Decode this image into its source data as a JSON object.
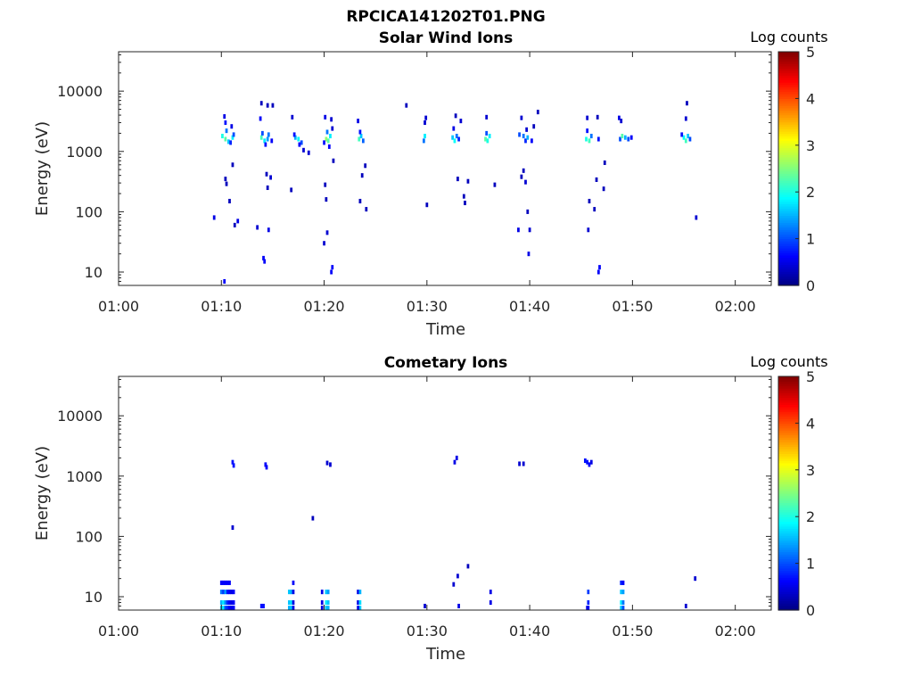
{
  "figure": {
    "title": "RPCICA141202T01.PNG"
  },
  "colorbar": {
    "label": "Log counts",
    "ticks": [
      "0",
      "1",
      "2",
      "3",
      "4",
      "5"
    ],
    "range": [
      0,
      5
    ]
  },
  "chart_data": [
    {
      "type": "heatmap",
      "title": "Solar Wind Ions",
      "xlabel": "Time",
      "ylabel": "Energy (eV)",
      "x_ticks": [
        "01:00",
        "01:10",
        "01:20",
        "01:30",
        "01:40",
        "01:50",
        "02:00"
      ],
      "x_range_minutes": [
        0,
        63.5
      ],
      "y_scale": "log",
      "y_range_eV": [
        6,
        45000
      ],
      "y_ticks": [
        "10",
        "100",
        "1000",
        "10000"
      ],
      "y_tick_values": [
        10,
        100,
        1000,
        10000
      ],
      "cells": [
        [
          10.1,
          1800,
          2
        ],
        [
          10.4,
          1600,
          2.3
        ],
        [
          10.7,
          1450,
          1.6
        ],
        [
          10.5,
          2200,
          1.2
        ],
        [
          10.4,
          3000,
          0.7
        ],
        [
          10.3,
          3800,
          0.5
        ],
        [
          10.9,
          1400,
          0.8
        ],
        [
          11.1,
          1700,
          1.8
        ],
        [
          11.2,
          1900,
          1.0
        ],
        [
          11.0,
          2600,
          0.5
        ],
        [
          13.9,
          1700,
          2.2
        ],
        [
          14.2,
          1500,
          1.8
        ],
        [
          14.5,
          1600,
          1.4
        ],
        [
          14.0,
          2000,
          1.0
        ],
        [
          13.8,
          3500,
          0.6
        ],
        [
          14.3,
          1300,
          0.7
        ],
        [
          14.6,
          1900,
          1.2
        ],
        [
          14.9,
          1500,
          0.6
        ],
        [
          13.9,
          6300,
          0.3
        ],
        [
          14.5,
          5800,
          0.3
        ],
        [
          15.0,
          5800,
          0.3
        ],
        [
          17.2,
          1700,
          1.5
        ],
        [
          17.5,
          1600,
          1.9
        ],
        [
          17.8,
          1400,
          1.0
        ],
        [
          17.1,
          1900,
          0.7
        ],
        [
          17.6,
          1300,
          0.6
        ],
        [
          16.9,
          3700,
          0.4
        ],
        [
          20.2,
          1600,
          2.6
        ],
        [
          20.4,
          1500,
          2.3
        ],
        [
          20.6,
          1800,
          1.8
        ],
        [
          20.3,
          2100,
          1.2
        ],
        [
          20.0,
          1400,
          0.7
        ],
        [
          20.1,
          3700,
          0.5
        ],
        [
          20.7,
          3400,
          0.4
        ],
        [
          20.5,
          1200,
          0.6
        ],
        [
          20.8,
          2400,
          0.4
        ],
        [
          23.4,
          1600,
          2.2
        ],
        [
          23.6,
          1800,
          1.6
        ],
        [
          23.8,
          1500,
          1.1
        ],
        [
          23.3,
          3200,
          0.5
        ],
        [
          23.5,
          2100,
          0.7
        ],
        [
          29.8,
          1800,
          1.8
        ],
        [
          29.7,
          1500,
          1.2
        ],
        [
          29.9,
          3600,
          0.4
        ],
        [
          29.8,
          3000,
          0.4
        ],
        [
          32.5,
          1700,
          1.6
        ],
        [
          32.7,
          1500,
          1.9
        ],
        [
          32.9,
          1800,
          1.2
        ],
        [
          33.1,
          1600,
          0.8
        ],
        [
          32.6,
          2400,
          0.5
        ],
        [
          32.8,
          3900,
          0.3
        ],
        [
          33.3,
          3200,
          0.4
        ],
        [
          35.7,
          1600,
          2.3
        ],
        [
          35.9,
          1500,
          2.0
        ],
        [
          36.1,
          1800,
          1.8
        ],
        [
          35.8,
          2000,
          1.0
        ],
        [
          35.8,
          3700,
          0.4
        ],
        [
          39.0,
          1900,
          1.0
        ],
        [
          39.4,
          1800,
          1.2
        ],
        [
          39.6,
          1500,
          0.8
        ],
        [
          39.8,
          1700,
          1.5
        ],
        [
          40.2,
          1500,
          0.6
        ],
        [
          39.2,
          3600,
          0.4
        ],
        [
          40.4,
          2600,
          0.3
        ],
        [
          39.7,
          2300,
          0.4
        ],
        [
          45.5,
          1600,
          2.0
        ],
        [
          45.8,
          1500,
          2.2
        ],
        [
          46.0,
          1800,
          1.2
        ],
        [
          45.6,
          2200,
          0.7
        ],
        [
          45.6,
          3600,
          0.4
        ],
        [
          46.7,
          1600,
          0.7
        ],
        [
          46.6,
          3700,
          0.3
        ],
        [
          48.8,
          1600,
          1.0
        ],
        [
          49.0,
          1800,
          2.3
        ],
        [
          49.3,
          1700,
          1.5
        ],
        [
          49.6,
          1600,
          1.0
        ],
        [
          48.7,
          3600,
          0.5
        ],
        [
          48.9,
          3200,
          0.4
        ],
        [
          49.9,
          1700,
          0.6
        ],
        [
          55.0,
          1700,
          1.9
        ],
        [
          55.2,
          1500,
          2.2
        ],
        [
          55.4,
          1800,
          1.6
        ],
        [
          55.6,
          1600,
          1.0
        ],
        [
          54.8,
          1900,
          0.7
        ],
        [
          55.2,
          3500,
          0.4
        ],
        [
          55.3,
          6300,
          0.3
        ],
        [
          9.3,
          80,
          0.5
        ],
        [
          10.3,
          7,
          0.6
        ],
        [
          10.4,
          350,
          0.3
        ],
        [
          10.5,
          290,
          0.3
        ],
        [
          10.8,
          150,
          0.3
        ],
        [
          11.1,
          600,
          0.3
        ],
        [
          11.3,
          60,
          0.3
        ],
        [
          11.6,
          70,
          0.5
        ],
        [
          13.5,
          55,
          0.4
        ],
        [
          14.1,
          17,
          0.6
        ],
        [
          14.2,
          15,
          0.6
        ],
        [
          14.4,
          420,
          0.3
        ],
        [
          14.5,
          250,
          0.3
        ],
        [
          14.6,
          50,
          0.5
        ],
        [
          14.8,
          370,
          0.4
        ],
        [
          16.8,
          230,
          0.3
        ],
        [
          18.0,
          1050,
          0.4
        ],
        [
          18.5,
          950,
          0.4
        ],
        [
          20.0,
          30,
          0.4
        ],
        [
          20.3,
          45,
          0.4
        ],
        [
          20.2,
          160,
          0.3
        ],
        [
          20.1,
          280,
          0.3
        ],
        [
          20.8,
          12,
          0.6
        ],
        [
          20.7,
          10,
          0.6
        ],
        [
          20.9,
          700,
          0.3
        ],
        [
          23.5,
          150,
          0.3
        ],
        [
          23.7,
          400,
          0.3
        ],
        [
          24.0,
          580,
          0.3
        ],
        [
          24.1,
          110,
          0.3
        ],
        [
          28.0,
          5800,
          0.3
        ],
        [
          30.0,
          130,
          0.3
        ],
        [
          33.0,
          350,
          0.3
        ],
        [
          33.6,
          180,
          0.3
        ],
        [
          33.7,
          140,
          0.3
        ],
        [
          34.0,
          320,
          0.3
        ],
        [
          36.6,
          280,
          0.3
        ],
        [
          38.9,
          50,
          0.5
        ],
        [
          39.2,
          380,
          0.3
        ],
        [
          39.4,
          480,
          0.3
        ],
        [
          39.6,
          310,
          0.4
        ],
        [
          39.8,
          100,
          0.3
        ],
        [
          40.0,
          50,
          0.4
        ],
        [
          39.9,
          20,
          0.5
        ],
        [
          40.8,
          4500,
          0.3
        ],
        [
          45.7,
          50,
          0.4
        ],
        [
          45.8,
          150,
          0.3
        ],
        [
          46.3,
          110,
          0.3
        ],
        [
          46.5,
          340,
          0.3
        ],
        [
          46.8,
          12,
          0.6
        ],
        [
          46.7,
          10,
          0.6
        ],
        [
          47.2,
          240,
          0.3
        ],
        [
          47.3,
          650,
          0.3
        ],
        [
          56.2,
          80,
          0.4
        ]
      ]
    },
    {
      "type": "heatmap",
      "title": "Cometary Ions",
      "xlabel": "Time",
      "ylabel": "Energy (eV)",
      "x_ticks": [
        "01:00",
        "01:10",
        "01:20",
        "01:30",
        "01:40",
        "01:50",
        "02:00"
      ],
      "x_range_minutes": [
        0,
        63.5
      ],
      "y_scale": "log",
      "y_range_eV": [
        6,
        45000
      ],
      "y_ticks": [
        "10",
        "100",
        "1000",
        "10000"
      ],
      "y_tick_values": [
        10,
        100,
        1000,
        10000
      ],
      "cells": [
        [
          10.0,
          17,
          0.6
        ],
        [
          10.2,
          17,
          0.6
        ],
        [
          10.4,
          17,
          0.6
        ],
        [
          10.6,
          17,
          0.6
        ],
        [
          10.8,
          17,
          0.6
        ],
        [
          10.0,
          12,
          1.2
        ],
        [
          10.2,
          12,
          0.9
        ],
        [
          10.4,
          12,
          1.4
        ],
        [
          10.6,
          12,
          0.7
        ],
        [
          10.8,
          12,
          0.6
        ],
        [
          11.0,
          12,
          0.5
        ],
        [
          11.2,
          12,
          0.6
        ],
        [
          10.0,
          8,
          1.5
        ],
        [
          10.2,
          8,
          1.8
        ],
        [
          10.4,
          8,
          1.3
        ],
        [
          10.6,
          8,
          0.8
        ],
        [
          10.8,
          8,
          0.6
        ],
        [
          11.0,
          8,
          0.5
        ],
        [
          11.2,
          8,
          0.6
        ],
        [
          10.0,
          6.5,
          1.6
        ],
        [
          10.2,
          6.5,
          1.8
        ],
        [
          10.4,
          6.5,
          1.0
        ],
        [
          10.6,
          6.5,
          0.8
        ],
        [
          10.8,
          6.5,
          0.6
        ],
        [
          11.0,
          6.5,
          0.5
        ],
        [
          11.2,
          6.5,
          0.6
        ],
        [
          11.1,
          1700,
          0.7
        ],
        [
          11.2,
          1500,
          0.7
        ],
        [
          11.1,
          140,
          0.4
        ],
        [
          13.9,
          7,
          0.7
        ],
        [
          14.1,
          7,
          0.7
        ],
        [
          14.3,
          1550,
          0.6
        ],
        [
          14.4,
          1400,
          0.6
        ],
        [
          16.6,
          12,
          1.6
        ],
        [
          16.8,
          12,
          1.5
        ],
        [
          16.8,
          8,
          1.8
        ],
        [
          16.6,
          8,
          1.6
        ],
        [
          16.8,
          6.5,
          1.6
        ],
        [
          16.6,
          6.5,
          1.5
        ],
        [
          17.0,
          17,
          0.6
        ],
        [
          17.0,
          12,
          0.5
        ],
        [
          17.0,
          8,
          0.5
        ],
        [
          17.0,
          6.5,
          0.5
        ],
        [
          18.9,
          200,
          0.3
        ],
        [
          19.8,
          12,
          0.5
        ],
        [
          19.8,
          8,
          0.5
        ],
        [
          19.8,
          6.5,
          0.5
        ],
        [
          20.2,
          12,
          1.6
        ],
        [
          20.2,
          8,
          1.8
        ],
        [
          20.2,
          6.5,
          1.6
        ],
        [
          20.4,
          12,
          1.4
        ],
        [
          20.4,
          8,
          1.6
        ],
        [
          20.4,
          6.5,
          1.5
        ],
        [
          20.6,
          1550,
          0.4
        ],
        [
          20.3,
          1650,
          0.4
        ],
        [
          23.3,
          12,
          0.5
        ],
        [
          23.3,
          8,
          0.5
        ],
        [
          23.5,
          12,
          1.5
        ],
        [
          23.5,
          8,
          1.7
        ],
        [
          23.5,
          6.5,
          1.6
        ],
        [
          23.3,
          6.5,
          0.5
        ],
        [
          29.8,
          7,
          0.4
        ],
        [
          32.7,
          1700,
          0.5
        ],
        [
          32.9,
          2000,
          0.5
        ],
        [
          32.6,
          16,
          0.4
        ],
        [
          33.0,
          22,
          0.4
        ],
        [
          33.1,
          7,
          0.5
        ],
        [
          34.0,
          32,
          0.3
        ],
        [
          36.2,
          12,
          0.5
        ],
        [
          36.2,
          8,
          0.5
        ],
        [
          39.0,
          1600,
          0.4
        ],
        [
          39.4,
          1600,
          0.4
        ],
        [
          45.4,
          1800,
          0.7
        ],
        [
          45.6,
          1700,
          0.7
        ],
        [
          45.8,
          1550,
          0.6
        ],
        [
          46.0,
          1700,
          0.5
        ],
        [
          45.7,
          12,
          0.9
        ],
        [
          45.7,
          8,
          0.8
        ],
        [
          45.7,
          6.5,
          0.6
        ],
        [
          45.6,
          6.5,
          0.5
        ],
        [
          48.9,
          17,
          0.8
        ],
        [
          48.9,
          12,
          1.6
        ],
        [
          48.9,
          8,
          1.8
        ],
        [
          48.9,
          6.5,
          1.6
        ],
        [
          49.1,
          17,
          0.6
        ],
        [
          49.1,
          12,
          1.4
        ],
        [
          49.1,
          8,
          1.2
        ],
        [
          49.1,
          6.5,
          1.0
        ],
        [
          55.2,
          7,
          0.4
        ],
        [
          56.1,
          20,
          0.4
        ]
      ]
    }
  ]
}
